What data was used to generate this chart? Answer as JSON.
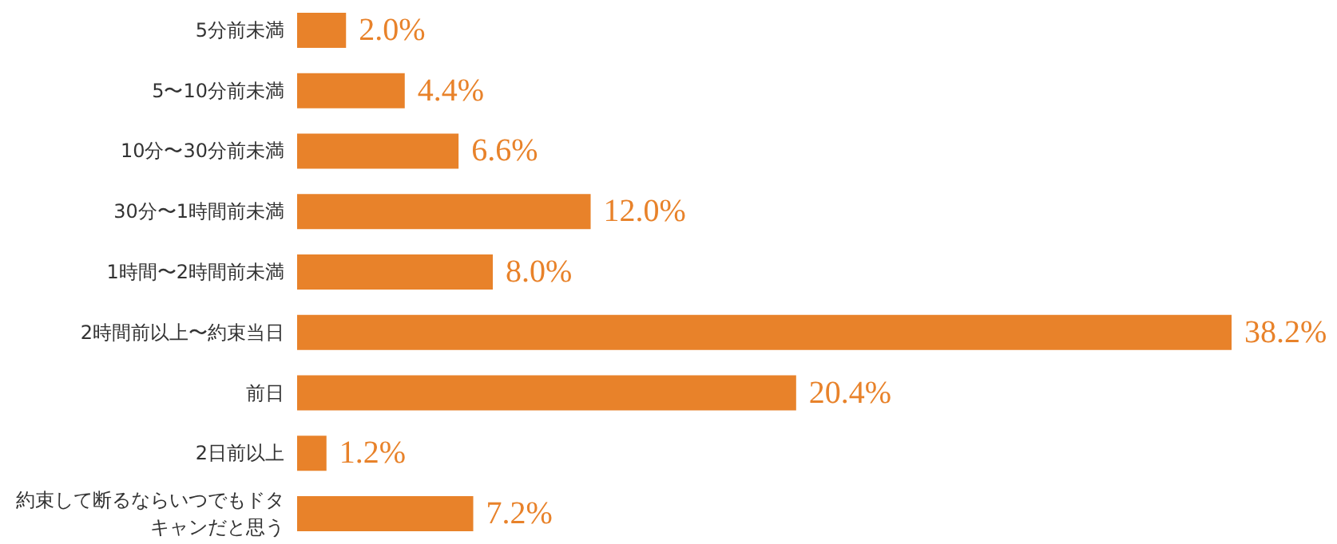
{
  "chart_data": {
    "type": "bar",
    "orientation": "horizontal",
    "categories": [
      "5分前未満",
      "5〜10分前未満",
      "10分〜30分前未満",
      "30分〜1時間前未満",
      "1時間〜2時間前未満",
      "2時間前以上〜約束当日",
      "前日",
      "2日前以上",
      "約束して断るならいつでもドタキャンだと思う"
    ],
    "values": [
      2.0,
      4.4,
      6.6,
      12.0,
      8.0,
      38.2,
      20.4,
      1.2,
      7.2
    ],
    "value_labels": [
      "2.0%",
      "4.4%",
      "6.6%",
      "12.0%",
      "8.0%",
      "38.2%",
      "20.4%",
      "1.2%",
      "7.2%"
    ],
    "color": "#e8822a"
  }
}
